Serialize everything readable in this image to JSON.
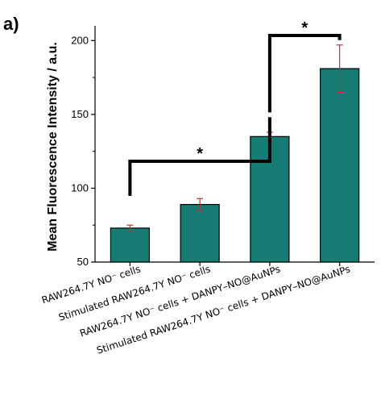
{
  "panel_label": "a)",
  "chart_data": {
    "type": "bar",
    "title": "",
    "xlabel": "",
    "ylabel": "Mean Fluorescence Intensity / a.u.",
    "ylim": [
      50,
      210
    ],
    "yticks": [
      50,
      100,
      150,
      200
    ],
    "grid": false,
    "categories": [
      "RAW264.7Y NO⁻ cells",
      "Stimulated RAW264.7Y NO⁻ cells",
      "RAW264.7Y NO⁻ cells + DANPY–NO@AuNPs",
      "Stimulated RAW264.7Y NO⁻ cells + DANPY–NO@AuNPs"
    ],
    "values": [
      73,
      89,
      135,
      181
    ],
    "errors": [
      2,
      4,
      3,
      16
    ],
    "bar_color": "#167c73",
    "error_color": "#b03a2e",
    "significance": [
      {
        "from": 0,
        "to": 2,
        "label": "*"
      },
      {
        "from": 2,
        "to": 3,
        "label": "*"
      }
    ]
  }
}
